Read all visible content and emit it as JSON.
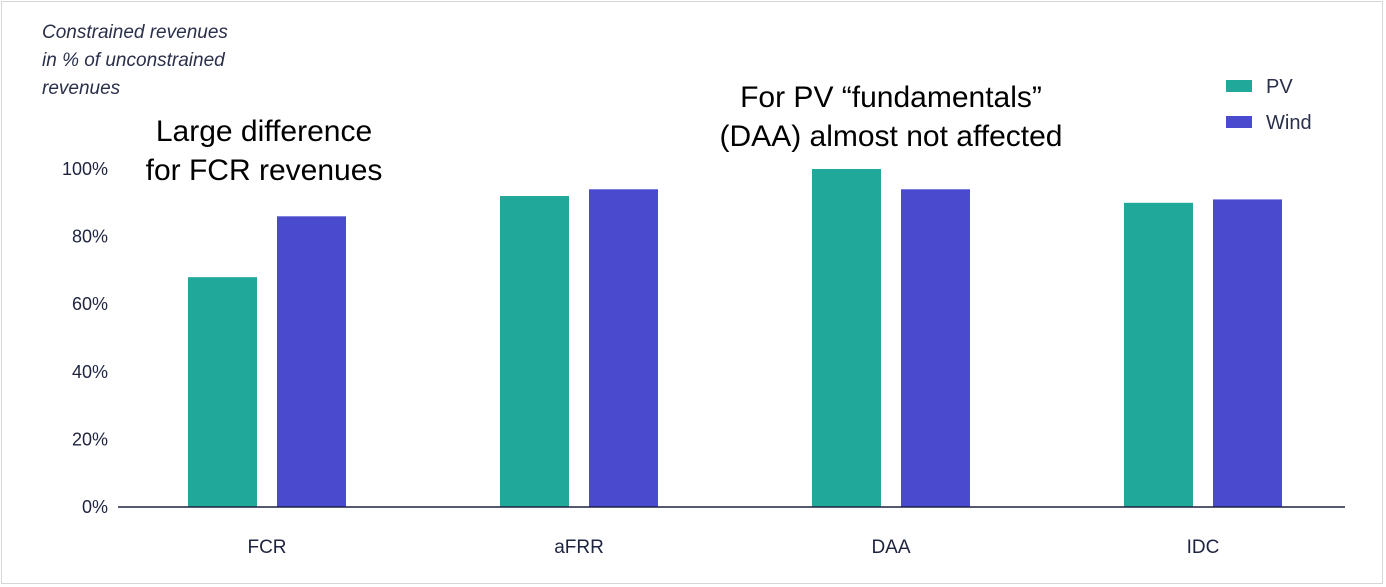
{
  "chart_data": {
    "type": "bar",
    "ylabel_lines": [
      "Constrained revenues",
      "in % of unconstrained",
      "revenues"
    ],
    "categories": [
      "FCR",
      "aFRR",
      "DAA",
      "IDC"
    ],
    "series": [
      {
        "name": "PV",
        "color": "#20a89a",
        "values": [
          68,
          92,
          100,
          90
        ]
      },
      {
        "name": "Wind",
        "color": "#4a4acf",
        "values": [
          86,
          94,
          94,
          91
        ]
      }
    ],
    "ylim": [
      0,
      100
    ],
    "yticks": [
      0,
      20,
      40,
      60,
      80,
      100
    ],
    "ytick_labels": [
      "0%",
      "20%",
      "40%",
      "60%",
      "80%",
      "100%"
    ],
    "legend_position": "top-right",
    "annotations": [
      {
        "lines": [
          "Large difference",
          "for FCR revenues"
        ],
        "near": "FCR"
      },
      {
        "lines": [
          "For PV “fundamentals”",
          "(DAA) almost not affected"
        ],
        "near": "DAA"
      }
    ]
  }
}
